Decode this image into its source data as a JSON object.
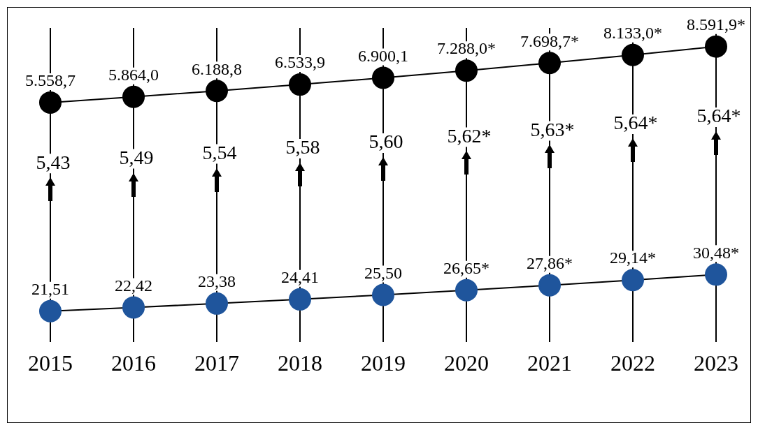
{
  "chart_data": {
    "type": "line",
    "categories": [
      "2015",
      "2016",
      "2017",
      "2018",
      "2019",
      "2020",
      "2021",
      "2022",
      "2023"
    ],
    "series": [
      {
        "color": "#000000",
        "values": [
          5558.7,
          5864.0,
          6188.8,
          6533.9,
          6900.1,
          7288.0,
          7698.7,
          8133.0,
          8591.9
        ],
        "value_labels": [
          "5.558,7",
          "5.864,0",
          "6.188,8",
          "6.533,9",
          "6.900,1",
          "7.288,0*",
          "7.698,7*",
          "8.133,0*",
          "8.591,9*"
        ]
      },
      {
        "color": "#1f559c",
        "axis": "y2",
        "values": [
          21.51,
          22.42,
          23.38,
          24.41,
          25.5,
          26.65,
          27.86,
          29.14,
          30.48
        ],
        "value_labels": [
          "21,51",
          "22,42",
          "23,38",
          "24,41",
          "25,50",
          "26,65*",
          "27,86*",
          "29,14*",
          "30,48*"
        ]
      }
    ],
    "annotations": [
      "5,43",
      "5,49",
      "5,54",
      "5,58",
      "5,60",
      "5,62*",
      "5,63*",
      "5,64*",
      "5,64*"
    ],
    "ylim": [
      -7400,
      9600
    ],
    "y2lim": [
      14,
      91
    ],
    "grid": "x",
    "legend": false,
    "tick_labels": "x",
    "marker": "circle",
    "line_style": "solid"
  }
}
